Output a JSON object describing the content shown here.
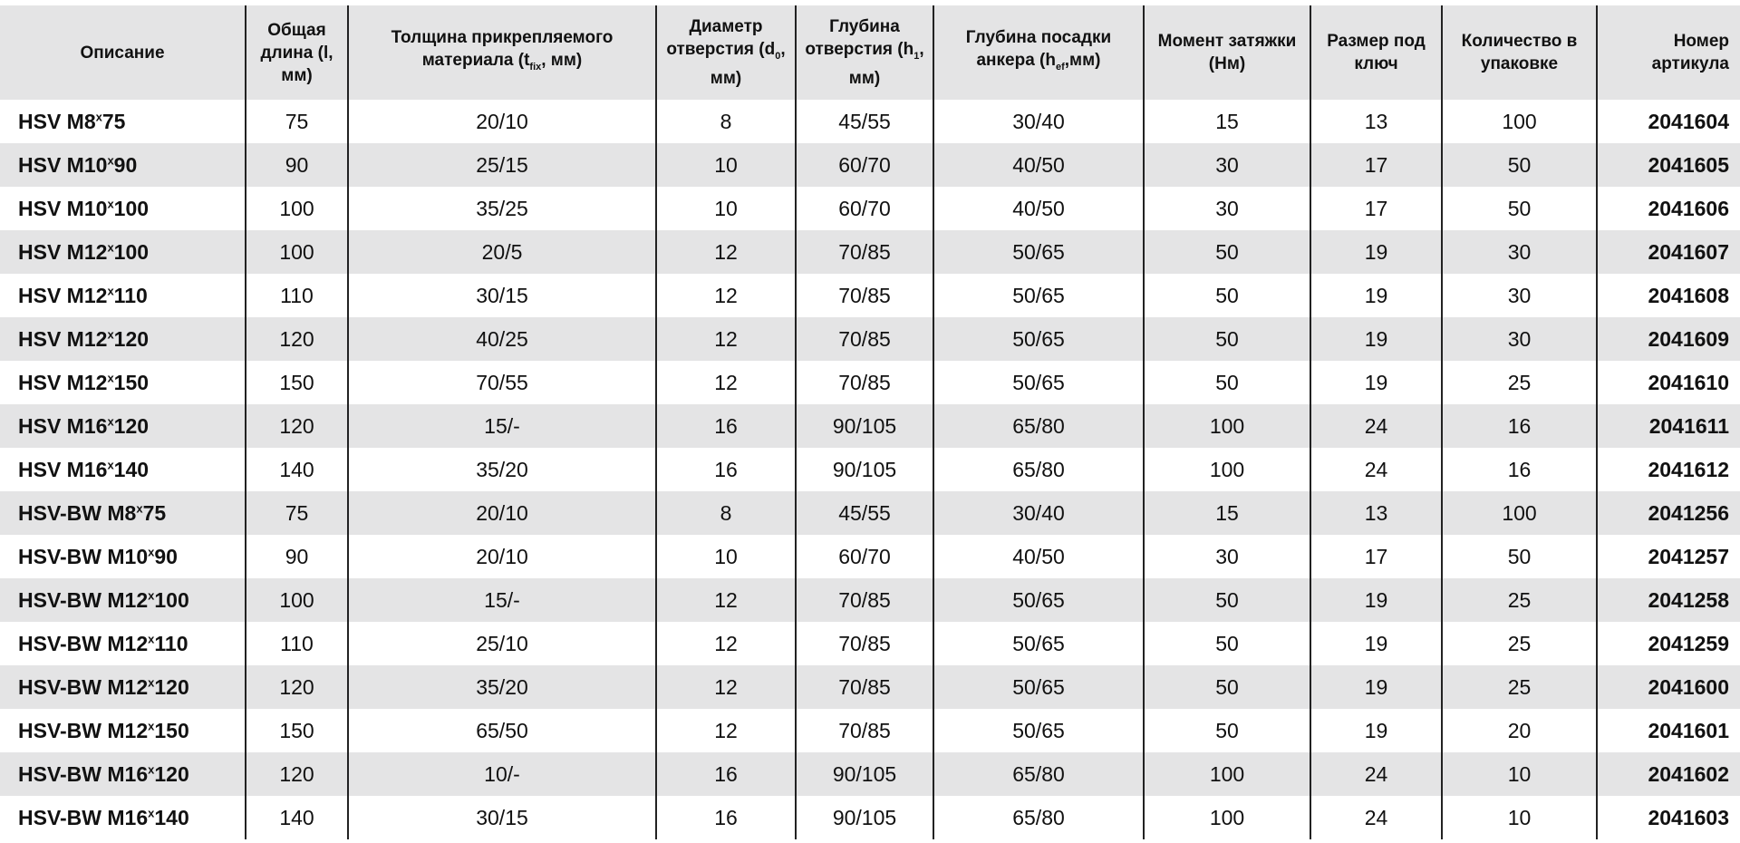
{
  "table": {
    "header": [
      [
        {
          "text": "Описание"
        }
      ],
      [
        {
          "text": "Общая длина (l, мм)"
        }
      ],
      [
        {
          "text": "Толщина прикрепляемого материала (t"
        },
        {
          "sub": "fix"
        },
        {
          "text": ", мм)"
        }
      ],
      [
        {
          "text": "Диаметр отверстия (d"
        },
        {
          "sub": "0"
        },
        {
          "text": ", мм)"
        }
      ],
      [
        {
          "text": "Глубина отверстия (h"
        },
        {
          "sub": "1"
        },
        {
          "text": ", мм)"
        }
      ],
      [
        {
          "text": "Глубина посадки анкера (h"
        },
        {
          "sub": "ef"
        },
        {
          "text": ",мм)"
        }
      ],
      [
        {
          "text": "Момент затяжки (Нм)"
        }
      ],
      [
        {
          "text": "Размер под ключ"
        }
      ],
      [
        {
          "text": "Количество в упаковке"
        }
      ],
      [
        {
          "text": "Номер артикула"
        }
      ]
    ],
    "rows": [
      [
        {
          "pre": "HSV M8",
          "sup": "x",
          "post": "75"
        },
        "75",
        "20/10",
        "8",
        "45/55",
        "30/40",
        "15",
        "13",
        "100",
        "2041604"
      ],
      [
        {
          "pre": "HSV M10",
          "sup": "x",
          "post": "90"
        },
        "90",
        "25/15",
        "10",
        "60/70",
        "40/50",
        "30",
        "17",
        "50",
        "2041605"
      ],
      [
        {
          "pre": "HSV M10",
          "sup": "x",
          "post": "100"
        },
        "100",
        "35/25",
        "10",
        "60/70",
        "40/50",
        "30",
        "17",
        "50",
        "2041606"
      ],
      [
        {
          "pre": "HSV M12",
          "sup": "x",
          "post": "100"
        },
        "100",
        "20/5",
        "12",
        "70/85",
        "50/65",
        "50",
        "19",
        "30",
        "2041607"
      ],
      [
        {
          "pre": "HSV M12",
          "sup": "x",
          "post": "110"
        },
        "110",
        "30/15",
        "12",
        "70/85",
        "50/65",
        "50",
        "19",
        "30",
        "2041608"
      ],
      [
        {
          "pre": "HSV M12",
          "sup": "x",
          "post": "120"
        },
        "120",
        "40/25",
        "12",
        "70/85",
        "50/65",
        "50",
        "19",
        "30",
        "2041609"
      ],
      [
        {
          "pre": "HSV M12",
          "sup": "x",
          "post": "150"
        },
        "150",
        "70/55",
        "12",
        "70/85",
        "50/65",
        "50",
        "19",
        "25",
        "2041610"
      ],
      [
        {
          "pre": "HSV M16",
          "sup": "x",
          "post": "120"
        },
        "120",
        "15/-",
        "16",
        "90/105",
        "65/80",
        "100",
        "24",
        "16",
        "2041611"
      ],
      [
        {
          "pre": "HSV M16",
          "sup": "x",
          "post": "140"
        },
        "140",
        "35/20",
        "16",
        "90/105",
        "65/80",
        "100",
        "24",
        "16",
        "2041612"
      ],
      [
        {
          "pre": "HSV-BW M8",
          "sup": "x",
          "post": "75"
        },
        "75",
        "20/10",
        "8",
        "45/55",
        "30/40",
        "15",
        "13",
        "100",
        "2041256"
      ],
      [
        {
          "pre": "HSV-BW M10",
          "sup": "x",
          "post": "90"
        },
        "90",
        "20/10",
        "10",
        "60/70",
        "40/50",
        "30",
        "17",
        "50",
        "2041257"
      ],
      [
        {
          "pre": "HSV-BW M12",
          "sup": "x",
          "post": "100"
        },
        "100",
        "15/-",
        "12",
        "70/85",
        "50/65",
        "50",
        "19",
        "25",
        "2041258"
      ],
      [
        {
          "pre": "HSV-BW M12",
          "sup": "x",
          "post": "110"
        },
        "110",
        "25/10",
        "12",
        "70/85",
        "50/65",
        "50",
        "19",
        "25",
        "2041259"
      ],
      [
        {
          "pre": "HSV-BW M12",
          "sup": "x",
          "post": "120"
        },
        "120",
        "35/20",
        "12",
        "70/85",
        "50/65",
        "50",
        "19",
        "25",
        "2041600"
      ],
      [
        {
          "pre": "HSV-BW M12",
          "sup": "x",
          "post": "150"
        },
        "150",
        "65/50",
        "12",
        "70/85",
        "50/65",
        "50",
        "19",
        "20",
        "2041601"
      ],
      [
        {
          "pre": "HSV-BW M16",
          "sup": "x",
          "post": "120"
        },
        "120",
        "10/-",
        "16",
        "90/105",
        "65/80",
        "100",
        "24",
        "10",
        "2041602"
      ],
      [
        {
          "pre": "HSV-BW M16",
          "sup": "x",
          "post": "140"
        },
        "140",
        "30/15",
        "16",
        "90/105",
        "65/80",
        "100",
        "24",
        "10",
        "2041603"
      ]
    ]
  }
}
